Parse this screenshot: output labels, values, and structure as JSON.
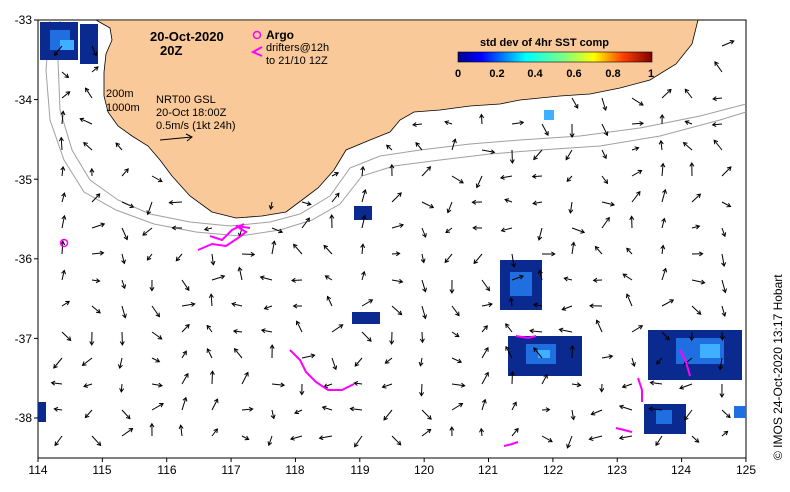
{
  "header": {
    "date": "20-Oct-2020",
    "time": "20Z"
  },
  "legend": {
    "argo_label": "Argo",
    "drifters_label": "drifters@12h",
    "drifters_range": "to 21/10 12Z",
    "argo_color": "#ff00ff",
    "drifter_color": "#ff00ff"
  },
  "colorbar": {
    "title": "std dev of 4hr SST comp",
    "ticks": [
      "0",
      "0.2",
      "0.4",
      "0.6",
      "0.8",
      "1"
    ]
  },
  "isobaths": {
    "shallow": "200m",
    "deep": "1000m"
  },
  "current_info": {
    "product": "NRT00 GSL",
    "timestamp": "20-Oct 18:00Z",
    "scale": "0.5m/s (1kt 24h)"
  },
  "axes": {
    "x_ticks": [
      "114",
      "115",
      "116",
      "117",
      "118",
      "119",
      "120",
      "121",
      "122",
      "123",
      "124",
      "125"
    ],
    "y_ticks": [
      "-33",
      "-34",
      "-35",
      "-36",
      "-37",
      "-38"
    ]
  },
  "credit": "© IMOS 24-Oct-2020 13:17 Hobart",
  "colors": {
    "land": "#f9c99a",
    "sst_dark": "#0a2a8f",
    "sst_mid": "#1f6fe0",
    "sst_light": "#3fb0ff",
    "isobath": "#a0a0a0"
  }
}
